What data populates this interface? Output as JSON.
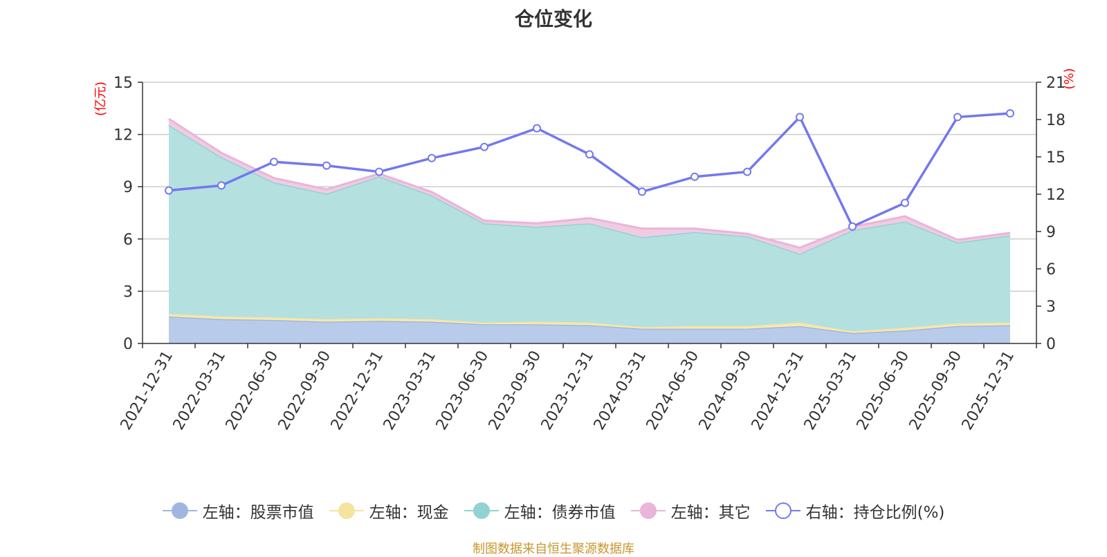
{
  "chart_data": {
    "type": "area",
    "title": "仓位变化",
    "left_unit": "(亿元)",
    "right_unit": "(%)",
    "source": "制图数据来自恒生聚源数据库",
    "left_axis": {
      "ticks": [
        0,
        3,
        6,
        9,
        12,
        15
      ],
      "ylim": [
        0,
        15
      ]
    },
    "right_axis": {
      "ticks": [
        0,
        3,
        6,
        9,
        12,
        15,
        18,
        21
      ],
      "ylim": [
        0,
        21
      ]
    },
    "categories": [
      "2021-12-31",
      "2022-03-31",
      "2022-06-30",
      "2022-09-30",
      "2022-12-31",
      "2023-03-31",
      "2023-06-30",
      "2023-09-30",
      "2023-12-31",
      "2024-03-31",
      "2024-06-30",
      "2024-09-30",
      "2024-12-31",
      "2025-03-31",
      "2025-06-30",
      "2025-09-30",
      "2025-12-31"
    ],
    "stacked_series": [
      {
        "name": "左轴：股票市值",
        "color": "#9fb7e0",
        "fill": "#b9cbea",
        "values": [
          1.55,
          1.4,
          1.35,
          1.25,
          1.3,
          1.25,
          1.1,
          1.1,
          1.05,
          0.85,
          0.85,
          0.85,
          1.0,
          0.6,
          0.75,
          1.0,
          1.05
        ]
      },
      {
        "name": "左轴：现金",
        "color": "#f5e3a0",
        "fill": "#f7e9b0",
        "values": [
          0.15,
          0.15,
          0.15,
          0.15,
          0.15,
          0.15,
          0.1,
          0.15,
          0.15,
          0.1,
          0.15,
          0.15,
          0.2,
          0.1,
          0.15,
          0.15,
          0.15
        ]
      },
      {
        "name": "左轴：债券市值",
        "color": "#93d2d3",
        "fill": "#b4e0e0",
        "values": [
          10.85,
          9.15,
          7.75,
          7.2,
          8.15,
          7.1,
          5.7,
          5.45,
          5.7,
          5.15,
          5.4,
          5.15,
          3.95,
          5.8,
          6.1,
          4.65,
          5.0
        ]
      },
      {
        "name": "左轴：其它",
        "color": "#e9b5d8",
        "fill": "#f0cce3",
        "values": [
          0.35,
          0.25,
          0.25,
          0.25,
          0.15,
          0.2,
          0.15,
          0.2,
          0.3,
          0.5,
          0.2,
          0.15,
          0.35,
          0.2,
          0.3,
          0.15,
          0.15
        ]
      }
    ],
    "line_series": {
      "name": "右轴：持仓比例(%)",
      "color": "#7378ee",
      "axis": "right",
      "values": [
        12.3,
        12.7,
        14.6,
        14.3,
        13.8,
        14.9,
        15.8,
        17.3,
        15.2,
        12.2,
        13.4,
        13.8,
        18.2,
        9.4,
        11.3,
        18.2,
        18.5
      ]
    },
    "grid": true,
    "legend_position": "bottom"
  }
}
